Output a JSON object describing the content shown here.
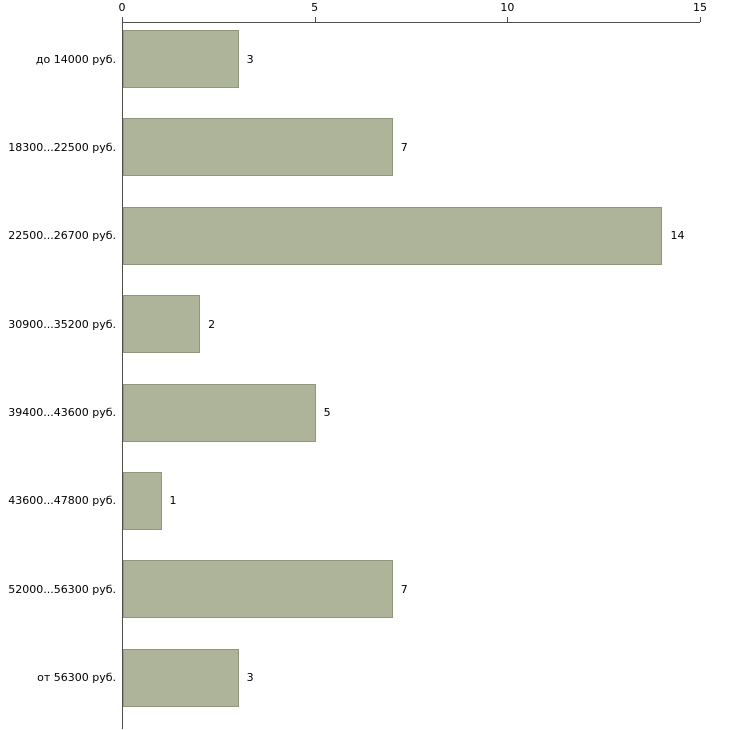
{
  "chart_data": {
    "type": "bar",
    "orientation": "horizontal",
    "title": "",
    "xlabel": "",
    "ylabel": "",
    "categories": [
      "до 14000 руб.",
      "18300...22500 руб.",
      "22500...26700 руб.",
      "30900...35200 руб.",
      "39400...43600 руб.",
      "43600...47800 руб.",
      "52000...56300 руб.",
      "от 56300 руб."
    ],
    "values": [
      3,
      7,
      14,
      2,
      5,
      1,
      7,
      3
    ],
    "xlim": [
      0,
      15
    ],
    "x_ticks": [
      0,
      5,
      10,
      15
    ],
    "grid": false,
    "legend": false,
    "bar_color": "#adb49a",
    "bar_border_color": "#8f977d",
    "axis_color": "#4d4d4d",
    "text_color": "#000000",
    "background_color": "#ffffff"
  }
}
